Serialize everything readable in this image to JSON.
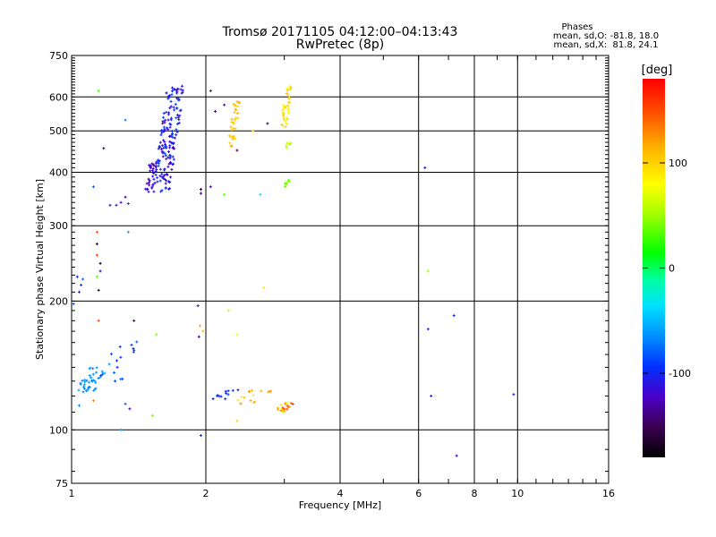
{
  "chart_data": {
    "type": "scatter",
    "title": "Tromsø 20171105 04:12:00–04:13:43",
    "subtitle": "RwPretec (8p)",
    "stats_title": "Phases",
    "stats_o": "mean, sd,O: -81.8, 18.0",
    "stats_x": "mean, sd,X:  81.8, 24.1",
    "xlabel": "Frequency [MHz]",
    "ylabel": "Stationary phase Virtual Height [km]",
    "x_scale": "log",
    "y_scale": "log",
    "xlim": [
      1,
      16
    ],
    "ylim": [
      75,
      750
    ],
    "grid": true,
    "x_ticks": [
      1,
      2,
      4,
      6,
      8,
      10,
      16
    ],
    "y_ticks": [
      75,
      100,
      200,
      300,
      400,
      500,
      600,
      750
    ],
    "colorbar": {
      "label": "[deg]",
      "range": [
        -180,
        180
      ],
      "ticks": [
        -100,
        0,
        100
      ]
    },
    "clusters": [
      {
        "f": [
          1.52,
          1.78
        ],
        "h": [
          360,
          640
        ],
        "n": 170,
        "phase": [
          -125,
          -85
        ]
      },
      {
        "f": [
          1.45,
          1.55
        ],
        "h": [
          360,
          420
        ],
        "n": 25,
        "phase": [
          -135,
          -110
        ]
      },
      {
        "f": [
          2.25,
          2.38
        ],
        "h": [
          460,
          590
        ],
        "n": 32,
        "phase": [
          90,
          120
        ]
      },
      {
        "f": [
          2.95,
          3.12
        ],
        "h": [
          510,
          640
        ],
        "n": 38,
        "phase": [
          70,
          115
        ]
      },
      {
        "f": [
          2.98,
          3.12
        ],
        "h": [
          450,
          470
        ],
        "n": 8,
        "phase": [
          55,
          75
        ]
      },
      {
        "f": [
          2.98,
          3.12
        ],
        "h": [
          370,
          385
        ],
        "n": 8,
        "phase": [
          35,
          55
        ]
      },
      {
        "f": [
          1.02,
          1.2
        ],
        "h": [
          122,
          140
        ],
        "n": 40,
        "phase": [
          -75,
          -50
        ]
      },
      {
        "f": [
          1.15,
          1.42
        ],
        "h": [
          130,
          165
        ],
        "n": 16,
        "phase": [
          -110,
          -60
        ]
      },
      {
        "f": [
          2.05,
          2.35
        ],
        "h": [
          118,
          124
        ],
        "n": 12,
        "phase": [
          -110,
          -90
        ]
      },
      {
        "f": [
          2.3,
          2.8
        ],
        "h": [
          115,
          124
        ],
        "n": 14,
        "phase": [
          80,
          130
        ]
      },
      {
        "f": [
          2.85,
          3.15
        ],
        "h": [
          110,
          116
        ],
        "n": 22,
        "phase": [
          70,
          160
        ]
      }
    ],
    "points": [
      {
        "f": 1.15,
        "h": 620,
        "phase": 30
      },
      {
        "f": 1.32,
        "h": 530,
        "phase": -70
      },
      {
        "f": 1.18,
        "h": 455,
        "phase": -140
      },
      {
        "f": 1.22,
        "h": 335,
        "phase": -110
      },
      {
        "f": 1.26,
        "h": 335,
        "phase": -115
      },
      {
        "f": 1.29,
        "h": 340,
        "phase": -120
      },
      {
        "f": 1.34,
        "h": 338,
        "phase": -90
      },
      {
        "f": 1.32,
        "h": 350,
        "phase": -130
      },
      {
        "f": 1.12,
        "h": 370,
        "phase": -80
      },
      {
        "f": 1.14,
        "h": 290,
        "phase": 150
      },
      {
        "f": 1.14,
        "h": 272,
        "phase": -160
      },
      {
        "f": 1.14,
        "h": 256,
        "phase": 160
      },
      {
        "f": 1.16,
        "h": 245,
        "phase": -170
      },
      {
        "f": 1.16,
        "h": 235,
        "phase": -120
      },
      {
        "f": 1.14,
        "h": 228,
        "phase": 30
      },
      {
        "f": 1.15,
        "h": 212,
        "phase": -160
      },
      {
        "f": 1.03,
        "h": 228,
        "phase": -100
      },
      {
        "f": 1.05,
        "h": 218,
        "phase": -90
      },
      {
        "f": 1.06,
        "h": 225,
        "phase": -80
      },
      {
        "f": 1.04,
        "h": 210,
        "phase": -110
      },
      {
        "f": 1.34,
        "h": 290,
        "phase": -60
      },
      {
        "f": 1.01,
        "h": 197,
        "phase": -80
      },
      {
        "f": 1.15,
        "h": 180,
        "phase": 150
      },
      {
        "f": 1.38,
        "h": 180,
        "phase": -150
      },
      {
        "f": 1.55,
        "h": 167,
        "phase": 40
      },
      {
        "f": 1.92,
        "h": 195,
        "phase": -110
      },
      {
        "f": 1.94,
        "h": 175,
        "phase": 120
      },
      {
        "f": 1.93,
        "h": 165,
        "phase": -130
      },
      {
        "f": 1.97,
        "h": 170,
        "phase": 110
      },
      {
        "f": 1.95,
        "h": 97,
        "phase": -100
      },
      {
        "f": 1.32,
        "h": 115,
        "phase": -80
      },
      {
        "f": 1.35,
        "h": 112,
        "phase": -130
      },
      {
        "f": 1.52,
        "h": 108,
        "phase": 40
      },
      {
        "f": 1.29,
        "h": 100,
        "phase": -60
      },
      {
        "f": 1.04,
        "h": 114,
        "phase": -70
      },
      {
        "f": 1.12,
        "h": 117,
        "phase": 130
      },
      {
        "f": 1.95,
        "h": 365,
        "phase": -150
      },
      {
        "f": 1.95,
        "h": 357,
        "phase": -140
      },
      {
        "f": 2.05,
        "h": 370,
        "phase": -130
      },
      {
        "f": 2.05,
        "h": 620,
        "phase": -110
      },
      {
        "f": 2.1,
        "h": 555,
        "phase": -140
      },
      {
        "f": 2.2,
        "h": 575,
        "phase": -130
      },
      {
        "f": 2.2,
        "h": 355,
        "phase": 30
      },
      {
        "f": 2.35,
        "h": 450,
        "phase": -150
      },
      {
        "f": 2.55,
        "h": 500,
        "phase": 90
      },
      {
        "f": 2.75,
        "h": 520,
        "phase": -150
      },
      {
        "f": 2.65,
        "h": 355,
        "phase": -40
      },
      {
        "f": 2.25,
        "h": 190,
        "phase": 90
      },
      {
        "f": 2.35,
        "h": 167,
        "phase": 70
      },
      {
        "f": 2.7,
        "h": 215,
        "phase": 90
      },
      {
        "f": 2.35,
        "h": 105,
        "phase": 100
      },
      {
        "f": 6.2,
        "h": 410,
        "phase": -110
      },
      {
        "f": 6.3,
        "h": 235,
        "phase": 50
      },
      {
        "f": 6.3,
        "h": 172,
        "phase": -110
      },
      {
        "f": 7.2,
        "h": 185,
        "phase": -100
      },
      {
        "f": 6.4,
        "h": 120,
        "phase": -110
      },
      {
        "f": 9.8,
        "h": 121,
        "phase": -110
      },
      {
        "f": 7.3,
        "h": 87,
        "phase": -120
      }
    ]
  }
}
